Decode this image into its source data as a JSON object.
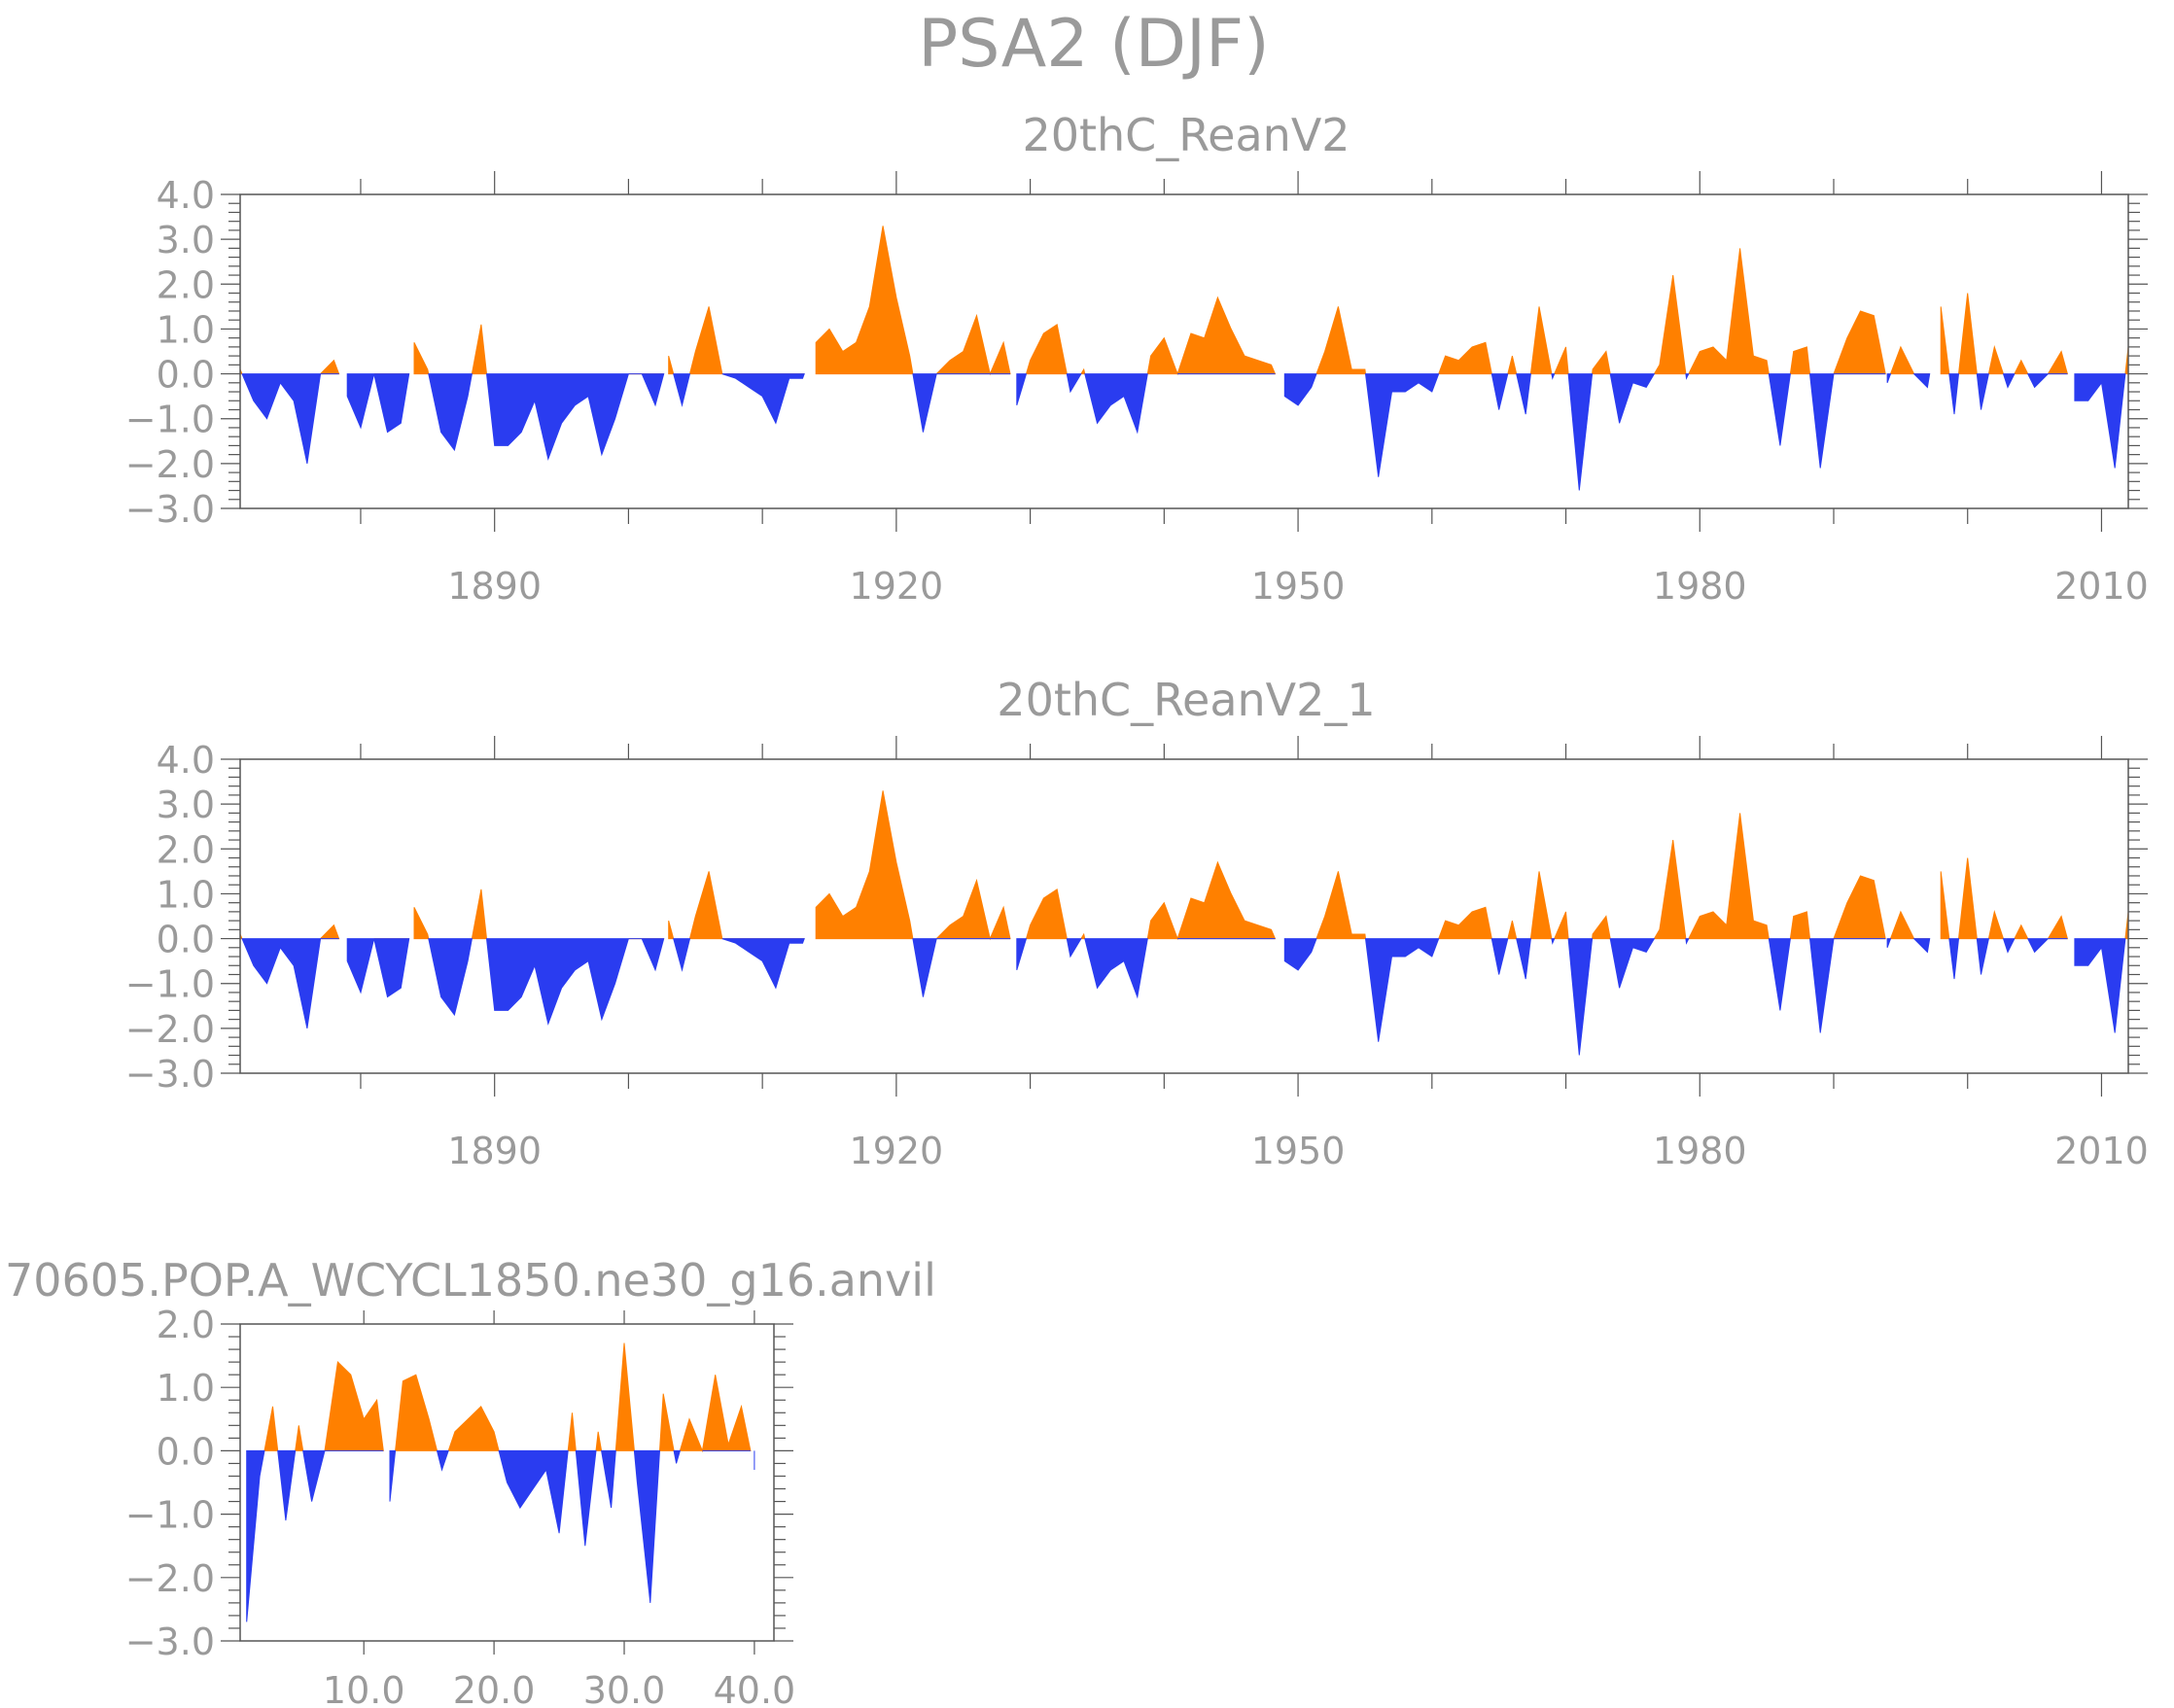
{
  "figure": {
    "title": "PSA2 (DJF)",
    "colors": {
      "positive": "#ff8000",
      "negative": "#2a3cf0",
      "axis": "#555555",
      "text": "#9a9a9a"
    }
  },
  "chart_data": [
    {
      "type": "area",
      "title": "20thC_ReanV2",
      "xlabel": "",
      "ylabel": "",
      "xlim": [
        1871,
        2012
      ],
      "ylim": [
        -3.0,
        4.0
      ],
      "yticks": [
        4.0,
        3.0,
        2.0,
        1.0,
        0.0,
        -1.0,
        -2.0,
        -3.0
      ],
      "ytick_labels": [
        "4.0",
        "3.0",
        "2.0",
        "1.0",
        "0.0",
        "−1.0",
        "−2.0",
        "−3.0"
      ],
      "xticks": [
        1890,
        1920,
        1950,
        1980,
        2010
      ],
      "xtick_labels": [
        "1890",
        "1920",
        "1950",
        "1980",
        "2010"
      ],
      "x_start": 1871,
      "values": [
        0.1,
        -0.6,
        -1.0,
        -0.2,
        -0.6,
        -2.0,
        0.0,
        0.3,
        -0.5,
        -1.2,
        0.0,
        -1.3,
        -1.1,
        0.7,
        0.1,
        -1.3,
        -1.7,
        -0.5,
        1.1,
        -1.6,
        -1.6,
        -1.3,
        -0.6,
        -1.9,
        -1.1,
        -0.7,
        -0.5,
        -1.8,
        -1.0,
        0.0,
        0.0,
        -0.7,
        0.4,
        -0.7,
        0.5,
        1.5,
        0.0,
        -0.1,
        -0.3,
        -0.5,
        -1.1,
        -0.1,
        -0.1,
        0.7,
        1.0,
        0.5,
        0.7,
        1.5,
        3.3,
        1.7,
        0.4,
        -1.3,
        0.0,
        0.3,
        0.5,
        1.3,
        0.0,
        0.7,
        -0.7,
        0.3,
        0.9,
        1.1,
        -0.4,
        0.1,
        -1.1,
        -0.7,
        -0.5,
        -1.3,
        0.4,
        0.8,
        0.0,
        0.9,
        0.8,
        1.7,
        1.0,
        0.4,
        0.3,
        0.2,
        -0.5,
        -0.7,
        -0.3,
        0.5,
        1.5,
        0.1,
        0.1,
        -2.3,
        -0.4,
        -0.4,
        -0.2,
        -0.4,
        0.4,
        0.3,
        0.6,
        0.7,
        -0.8,
        0.4,
        -0.9,
        1.5,
        -0.1,
        0.6,
        -2.6,
        0.1,
        0.5,
        -1.1,
        -0.2,
        -0.3,
        0.2,
        2.2,
        -0.1,
        0.5,
        0.6,
        0.3,
        2.8,
        0.4,
        0.3,
        -1.6,
        0.5,
        0.6,
        -2.1,
        0.0,
        0.8,
        1.4,
        1.3,
        -0.2,
        0.6,
        0.0,
        -0.3,
        1.5,
        -0.9,
        1.8,
        -0.8,
        0.6,
        -0.3,
        0.3,
        -0.3,
        0.0,
        0.5,
        -0.6,
        -0.6,
        -0.2,
        -2.1,
        0.6
      ]
    },
    {
      "type": "area",
      "title": "20thC_ReanV2_1",
      "xlabel": "",
      "ylabel": "",
      "xlim": [
        1871,
        2012
      ],
      "ylim": [
        -3.0,
        4.0
      ],
      "yticks": [
        4.0,
        3.0,
        2.0,
        1.0,
        0.0,
        -1.0,
        -2.0,
        -3.0
      ],
      "ytick_labels": [
        "4.0",
        "3.0",
        "2.0",
        "1.0",
        "0.0",
        "−1.0",
        "−2.0",
        "−3.0"
      ],
      "xticks": [
        1890,
        1920,
        1950,
        1980,
        2010
      ],
      "xtick_labels": [
        "1890",
        "1920",
        "1950",
        "1980",
        "2010"
      ],
      "x_start": 1871,
      "values": [
        0.1,
        -0.6,
        -1.0,
        -0.2,
        -0.6,
        -2.0,
        0.0,
        0.3,
        -0.5,
        -1.2,
        0.0,
        -1.3,
        -1.1,
        0.7,
        0.1,
        -1.3,
        -1.7,
        -0.5,
        1.1,
        -1.6,
        -1.6,
        -1.3,
        -0.6,
        -1.9,
        -1.1,
        -0.7,
        -0.5,
        -1.8,
        -1.0,
        0.0,
        0.0,
        -0.7,
        0.4,
        -0.7,
        0.5,
        1.5,
        0.0,
        -0.1,
        -0.3,
        -0.5,
        -1.1,
        -0.1,
        -0.1,
        0.7,
        1.0,
        0.5,
        0.7,
        1.5,
        3.3,
        1.7,
        0.4,
        -1.3,
        0.0,
        0.3,
        0.5,
        1.3,
        0.0,
        0.7,
        -0.7,
        0.3,
        0.9,
        1.1,
        -0.4,
        0.1,
        -1.1,
        -0.7,
        -0.5,
        -1.3,
        0.4,
        0.8,
        0.0,
        0.9,
        0.8,
        1.7,
        1.0,
        0.4,
        0.3,
        0.2,
        -0.5,
        -0.7,
        -0.3,
        0.5,
        1.5,
        0.1,
        0.1,
        -2.3,
        -0.4,
        -0.4,
        -0.2,
        -0.4,
        0.4,
        0.3,
        0.6,
        0.7,
        -0.8,
        0.4,
        -0.9,
        1.5,
        -0.1,
        0.6,
        -2.6,
        0.1,
        0.5,
        -1.1,
        -0.2,
        -0.3,
        0.2,
        2.2,
        -0.1,
        0.5,
        0.6,
        0.3,
        2.8,
        0.4,
        0.3,
        -1.6,
        0.5,
        0.6,
        -2.1,
        0.0,
        0.8,
        1.4,
        1.3,
        -0.2,
        0.6,
        0.0,
        -0.3,
        1.5,
        -0.9,
        1.8,
        -0.8,
        0.6,
        -0.3,
        0.3,
        -0.3,
        0.0,
        0.5,
        -0.6,
        -0.6,
        -0.2,
        -2.1,
        0.6
      ]
    },
    {
      "type": "area",
      "title": "70605.POP.A_WCYCL1850.ne30_g16.anvil",
      "xlabel": "",
      "ylabel": "",
      "xlim": [
        0.5,
        41.5
      ],
      "ylim": [
        -3.0,
        2.0
      ],
      "yticks": [
        2.0,
        1.0,
        0.0,
        -1.0,
        -2.0,
        -3.0
      ],
      "ytick_labels": [
        "2.0",
        "1.0",
        "0.0",
        "−1.0",
        "−2.0",
        "−3.0"
      ],
      "xticks": [
        10,
        20,
        30,
        40
      ],
      "xtick_labels": [
        "10.0",
        "20.0",
        "30.0",
        "40.0"
      ],
      "x_start": 1,
      "values": [
        -2.7,
        -0.4,
        0.7,
        -1.1,
        0.4,
        -0.8,
        0.0,
        1.4,
        1.2,
        0.5,
        0.8,
        -0.8,
        1.1,
        1.2,
        0.5,
        -0.3,
        0.3,
        0.5,
        0.7,
        0.3,
        -0.5,
        -0.9,
        -0.6,
        -0.3,
        -1.3,
        0.6,
        -1.5,
        0.3,
        -0.9,
        1.7,
        -0.5,
        -2.4,
        0.9,
        -0.2,
        0.5,
        0.0,
        1.2,
        0.1,
        0.7,
        -0.3
      ]
    }
  ]
}
